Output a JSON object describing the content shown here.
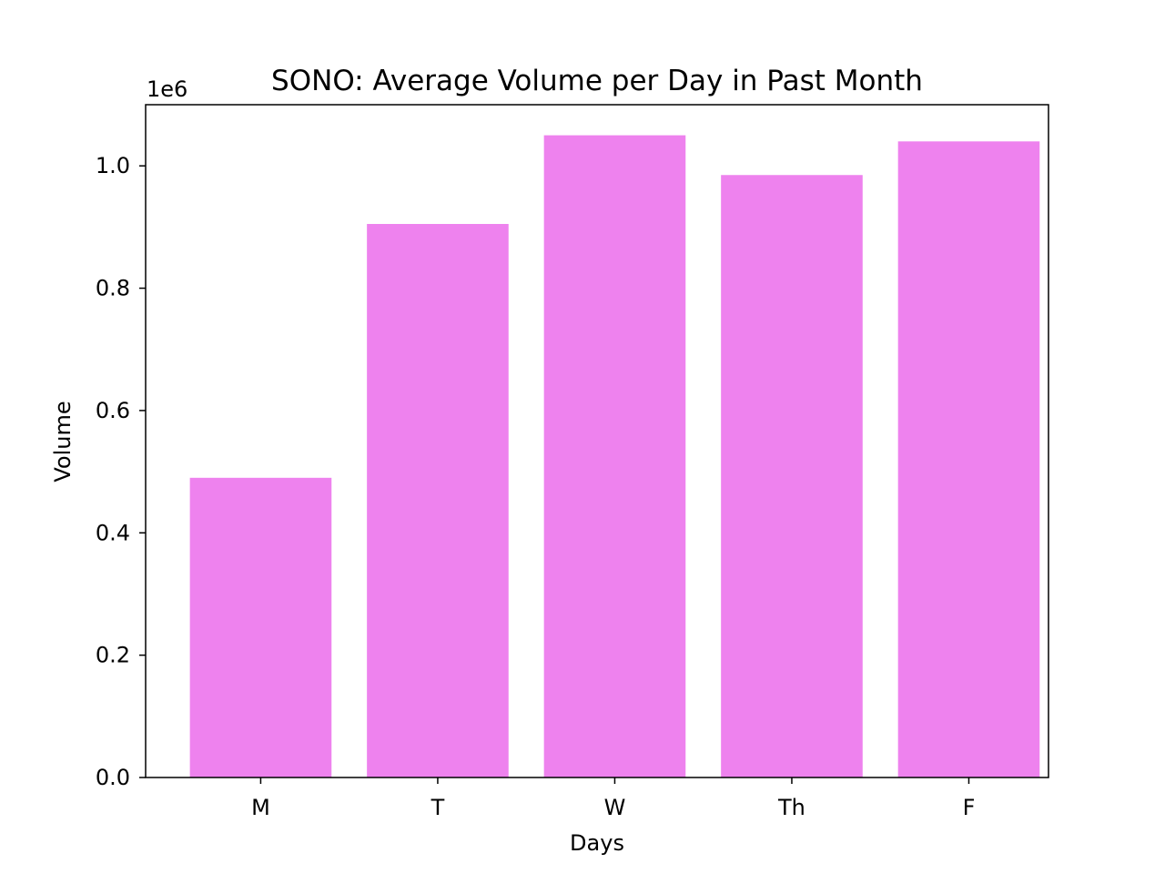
{
  "chart_data": {
    "type": "bar",
    "title": "SONO: Average Volume per Day in Past Month",
    "xlabel": "Days",
    "ylabel": "Volume",
    "offset_text": "1e6",
    "categories": [
      "M",
      "T",
      "W",
      "Th",
      "F"
    ],
    "values": [
      490000,
      905000,
      1050000,
      985000,
      1040000
    ],
    "ylim": [
      0,
      1100000
    ],
    "y_ticks": [
      0,
      200000,
      400000,
      600000,
      800000,
      1000000
    ],
    "y_tick_labels": [
      "0.0",
      "0.2",
      "0.4",
      "0.6",
      "0.8",
      "1.0"
    ],
    "bar_color": "#ee82ee",
    "grid": false,
    "legend": "none"
  }
}
